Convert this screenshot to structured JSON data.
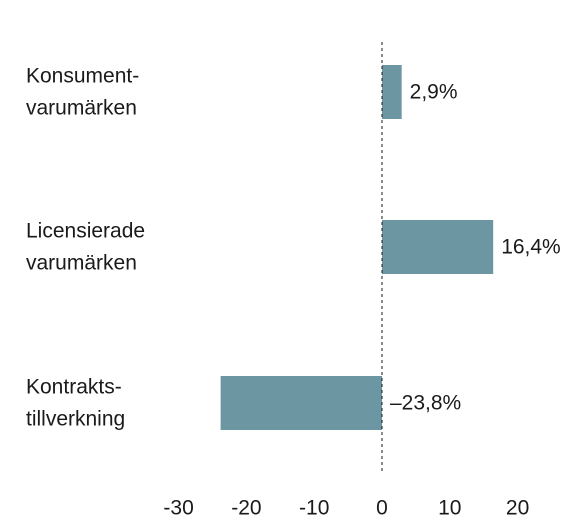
{
  "chart_data": {
    "type": "bar",
    "orientation": "horizontal",
    "categories": [
      [
        "Konsument-",
        "varumärken"
      ],
      [
        "Licensierade",
        "varumärken"
      ],
      [
        "Kontrakts-",
        "tillverkning"
      ]
    ],
    "values": [
      2.9,
      16.4,
      -23.8
    ],
    "value_labels": [
      "2,9%",
      "16,4%",
      "–23,8%"
    ],
    "xlim": [
      -30,
      20
    ],
    "xticks": [
      -30,
      -20,
      -10,
      0,
      10,
      20
    ],
    "xtick_labels": [
      "-30",
      "-20",
      "-10",
      "0",
      "10",
      "20"
    ],
    "bar_color": "#6b96a2",
    "zero_line": "dashed",
    "grid": false
  }
}
